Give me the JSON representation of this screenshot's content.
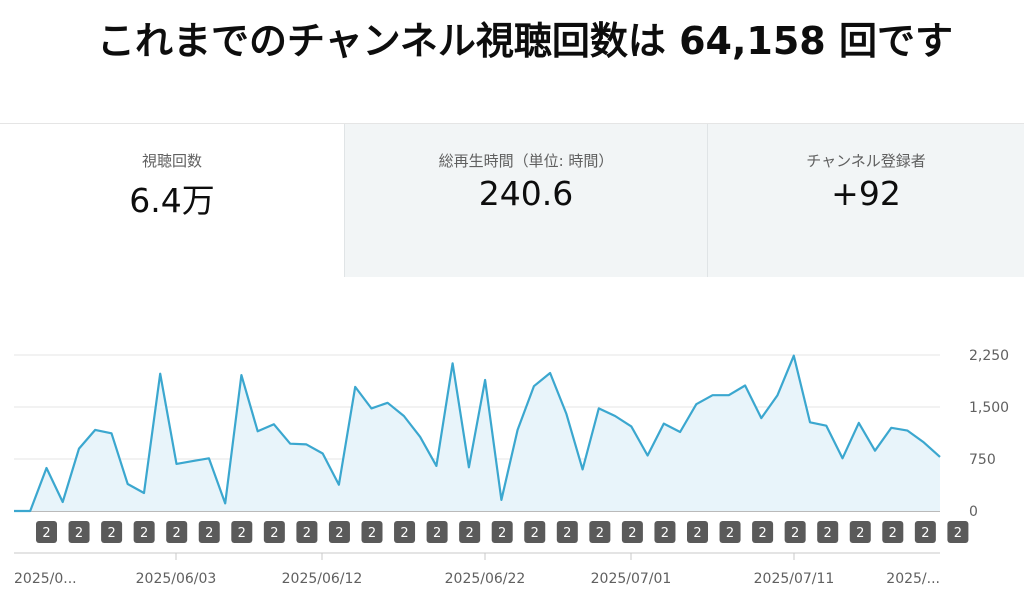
{
  "headline": "これまでのチャンネル視聴回数は 64,158 回です",
  "metrics": [
    {
      "label": "視聴回数",
      "value": "6.4万"
    },
    {
      "label": "総再生時間（単位: 時間）",
      "value": "240.6"
    },
    {
      "label": "チャンネル登録者",
      "value": "+92"
    }
  ],
  "chart_data": {
    "type": "area",
    "ylim": [
      0,
      2250
    ],
    "yticks": [
      "2,250",
      "1,500",
      "750",
      "0"
    ],
    "ytick_values": [
      2250,
      1500,
      750,
      0
    ],
    "xtick_labels": [
      "2025/0...",
      "2025/06/03",
      "2025/06/12",
      "2025/06/22",
      "2025/07/01",
      "2025/07/11",
      "2025/..."
    ],
    "grid": true,
    "colors": {
      "line": "#3ba7cf",
      "fill": "#e8f4fa",
      "badge": "#5a5a5a"
    },
    "values": [
      0,
      0,
      620,
      130,
      900,
      1170,
      1120,
      390,
      260,
      1980,
      680,
      720,
      760,
      110,
      1960,
      1150,
      1250,
      970,
      960,
      830,
      380,
      1790,
      1480,
      1560,
      1370,
      1070,
      650,
      2130,
      630,
      1890,
      160,
      1170,
      1800,
      1990,
      1400,
      600,
      1480,
      1370,
      1220,
      800,
      1260,
      1140,
      1540,
      1670,
      1670,
      1810,
      1340,
      1670,
      2240,
      1280,
      1230,
      760,
      1270,
      870,
      1200,
      1160,
      990,
      780
    ],
    "badges": [
      "2",
      "2",
      "2",
      "2",
      "2",
      "2",
      "2",
      "2",
      "2",
      "2",
      "2",
      "2",
      "2",
      "2",
      "2",
      "2",
      "2",
      "2",
      "2",
      "2",
      "2",
      "2",
      "2",
      "2",
      "2",
      "2",
      "2",
      "2",
      "2"
    ]
  }
}
